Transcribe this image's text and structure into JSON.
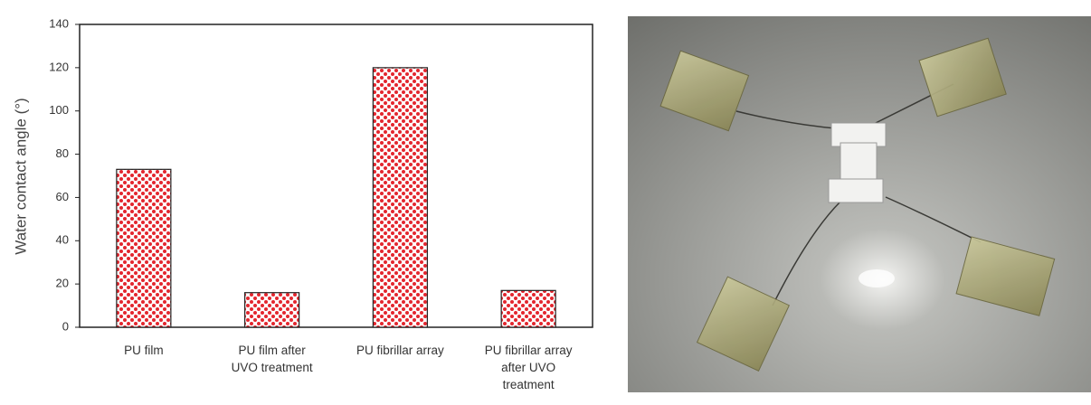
{
  "chart_data": {
    "type": "bar",
    "y_label": "Water contact angle (°)",
    "categories": [
      "PU film",
      "PU film after\nUVO treatment",
      "PU fibrillar array",
      "PU fibrillar array\nafter UVO\ntreatment"
    ],
    "values": [
      73,
      16,
      120,
      17
    ],
    "color": "#e3262e",
    "ylim": [
      0,
      140
    ],
    "yticks": [
      0,
      20,
      40,
      60,
      80,
      100,
      120,
      140
    ],
    "grid": false
  }
}
